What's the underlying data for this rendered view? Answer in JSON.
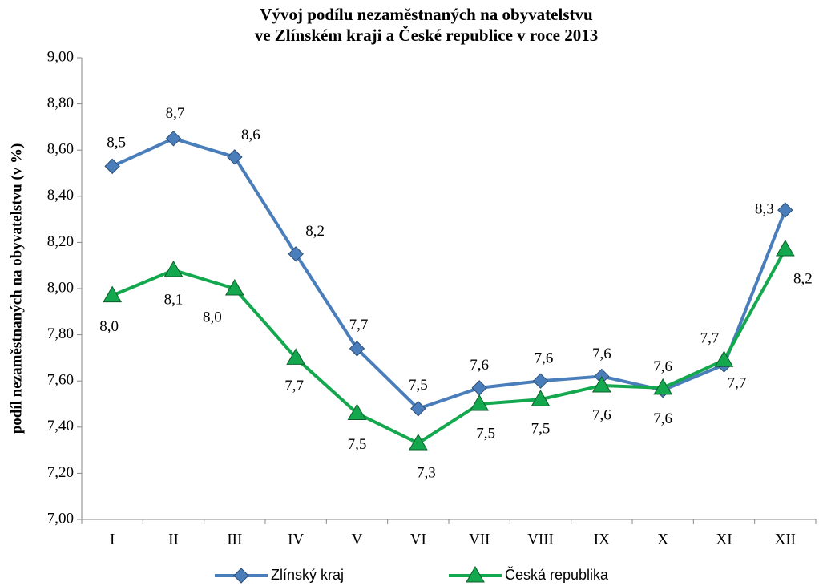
{
  "chart_data": {
    "type": "line",
    "title": [
      "Vývoj podílu nezaměstnaných na obyvatelstvu",
      "ve Zlínském kraji a České republice v roce 2013"
    ],
    "y_label": "podíl nezaměstnaných na obyvatelstvu (v %)",
    "categories": [
      "I",
      "II",
      "III",
      "IV",
      "V",
      "VI",
      "VII",
      "VIII",
      "IX",
      "X",
      "XI",
      "XII"
    ],
    "series": [
      {
        "name": "Zlínský kraj",
        "color": "#4a7ebb",
        "marker": "diamond",
        "values": [
          8.53,
          8.65,
          8.57,
          8.15,
          7.74,
          7.48,
          7.57,
          7.6,
          7.62,
          7.56,
          7.67,
          8.34
        ],
        "value_labels": [
          "8,5",
          "8,7",
          "8,6",
          "8,2",
          "7,7",
          "7,5",
          "7,6",
          "7,6",
          "7,6",
          "7,6",
          "7,7",
          "8,3"
        ]
      },
      {
        "name": "Česká republika",
        "color": "#13a84e",
        "marker": "triangle",
        "values": [
          7.97,
          8.08,
          8.0,
          7.7,
          7.46,
          7.33,
          7.5,
          7.52,
          7.58,
          7.57,
          7.69,
          8.17
        ],
        "value_labels": [
          "8,0",
          "8,1",
          "8,0",
          "7,7",
          "7,5",
          "7,3",
          "7,5",
          "7,5",
          "7,6",
          "7,6",
          "7,7",
          "8,2"
        ]
      }
    ],
    "ylim": [
      7,
      9
    ],
    "yticks": [
      {
        "value": 7,
        "label": "7,00"
      },
      {
        "value": 7.2,
        "label": "7,20"
      },
      {
        "value": 7.4,
        "label": "7,40"
      },
      {
        "value": 7.6,
        "label": "7,60"
      },
      {
        "value": 7.8,
        "label": "7,80"
      },
      {
        "value": 8,
        "label": "8,00"
      },
      {
        "value": 8.2,
        "label": "8,20"
      },
      {
        "value": 8.4,
        "label": "8,40"
      },
      {
        "value": 8.6,
        "label": "8,60"
      },
      {
        "value": 8.8,
        "label": "8,80"
      },
      {
        "value": 9,
        "label": "9,00"
      }
    ],
    "grid": false,
    "legend": "bottom"
  }
}
